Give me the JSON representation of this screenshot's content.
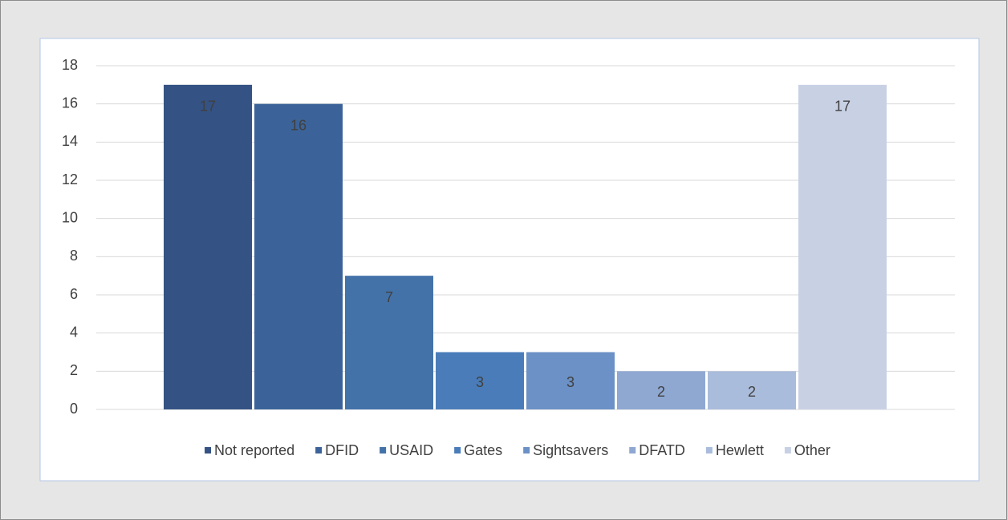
{
  "chart_data": {
    "type": "bar",
    "series": [
      {
        "name": "Not reported",
        "color": "#345283",
        "values": [
          17
        ]
      },
      {
        "name": "DFID",
        "color": "#3b6399",
        "values": [
          16
        ]
      },
      {
        "name": "USAID",
        "color": "#4372a9",
        "values": [
          7
        ]
      },
      {
        "name": "Gates",
        "color": "#4a7cb9",
        "values": [
          3
        ]
      },
      {
        "name": "Sightsavers",
        "color": "#6b91c6",
        "values": [
          3
        ]
      },
      {
        "name": "DFATD",
        "color": "#8fa8d2",
        "values": [
          2
        ]
      },
      {
        "name": "Hewlett",
        "color": "#aabcdc",
        "values": [
          2
        ]
      },
      {
        "name": "Other",
        "color": "#c8d1e4",
        "values": [
          17
        ]
      }
    ],
    "ylim": [
      0,
      18
    ],
    "yticks": [
      0,
      2,
      4,
      6,
      8,
      10,
      12,
      14,
      16,
      18
    ],
    "grid": true,
    "legend": "bottom"
  }
}
